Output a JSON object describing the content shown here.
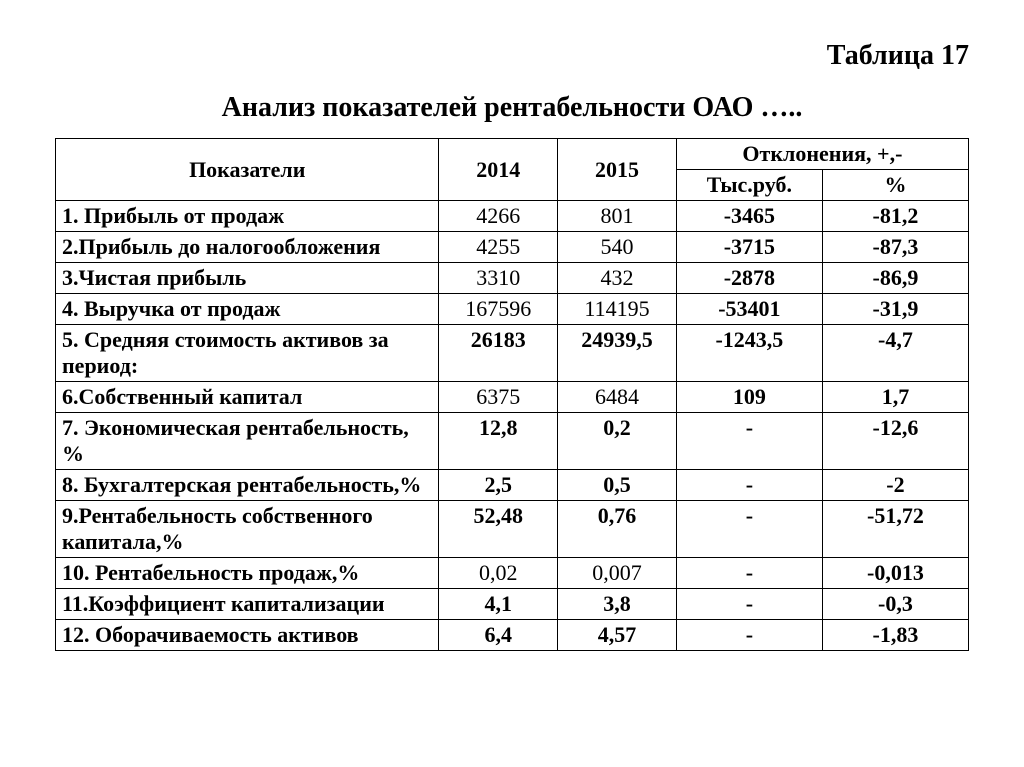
{
  "table_number": "Таблица 17",
  "caption": "Анализ показателей рентабельности ОАО …..",
  "header": {
    "indicator": "Показатели",
    "y2014": "2014",
    "y2015": "2015",
    "deviations": "Отклонения, +,-",
    "dev_abs": "Тыс.руб.",
    "dev_pct": "%"
  },
  "rows": [
    {
      "label": "1. Прибыль от продаж",
      "v2014": "4266",
      "v2015": "801",
      "abs": "-3465",
      "pct": "-81,2",
      "label_bold": true,
      "v2014_cls": "",
      "v2015_cls": "",
      "abs_cls": "bold sm",
      "pct_cls": "bold sm"
    },
    {
      "label": "2.Прибыль до налогообложения",
      "v2014": "4255",
      "v2015": "540",
      "abs": "-3715",
      "pct": "-87,3",
      "label_bold": true,
      "v2014_cls": "",
      "v2015_cls": "",
      "abs_cls": "bold",
      "pct_cls": "bold"
    },
    {
      "label": "3.Чистая прибыль",
      "v2014": "3310",
      "v2015": "432",
      "abs": "-2878",
      "pct": "-86,9",
      "label_bold": true,
      "v2014_cls": "",
      "v2015_cls": "",
      "abs_cls": "bold",
      "pct_cls": "bold"
    },
    {
      "label": "4. Выручка от продаж",
      "v2014": "167596",
      "v2015": "114195",
      "abs": "-53401",
      "pct": "-31,9",
      "label_bold": true,
      "v2014_cls": "",
      "v2015_cls": "",
      "abs_cls": "bold sm",
      "pct_cls": "bold sm"
    },
    {
      "label": "5. Средняя стоимость активов за период:",
      "v2014": "26183",
      "v2015": "24939,5",
      "abs": "-1243,5",
      "pct": "-4,7",
      "label_bold": true,
      "v2014_cls": "bold sm",
      "v2015_cls": "bold sm",
      "abs_cls": "bold sm",
      "pct_cls": "bold sm"
    },
    {
      "label": "6.Собственный капитал",
      "v2014": "6375",
      "v2015": "6484",
      "abs": "109",
      "pct": "1,7",
      "label_bold": true,
      "v2014_cls": "",
      "v2015_cls": "",
      "abs_cls": "bold",
      "pct_cls": "bold"
    },
    {
      "label": "7. Экономическая рентабельность, %",
      "v2014": "12,8",
      "v2015": "0,2",
      "abs": "-",
      "pct": "-12,6",
      "label_bold": true,
      "v2014_cls": "bold",
      "v2015_cls": "bold",
      "abs_cls": "bold",
      "pct_cls": "bold"
    },
    {
      "label": "8. Бухгалтерская рентабельность,%",
      "v2014": "2,5",
      "v2015": "0,5",
      "abs": "-",
      "pct": "-2",
      "label_bold": true,
      "v2014_cls": "bold",
      "v2015_cls": "bold",
      "abs_cls": "bold",
      "pct_cls": "bold"
    },
    {
      "label": "9.Рентабельность собственного капитала,%",
      "v2014": "52,48",
      "v2015": "0,76",
      "abs": "-",
      "pct": "-51,72",
      "label_bold": true,
      "v2014_cls": "bold",
      "v2015_cls": "bold",
      "abs_cls": "bold",
      "pct_cls": "bold"
    },
    {
      "label": "10. Рентабельность продаж,%",
      "v2014": "0,02",
      "v2015": "0,007",
      "abs": "-",
      "pct": "-0,013",
      "label_bold": true,
      "v2014_cls": "big",
      "v2015_cls": "big",
      "abs_cls": "bold",
      "pct_cls": "bold sm"
    },
    {
      "label": "11.Коэффициент капитализации",
      "v2014": "4,1",
      "v2015": "3,8",
      "abs": "-",
      "pct": "-0,3",
      "label_bold": true,
      "v2014_cls": "bold",
      "v2015_cls": "bold",
      "abs_cls": "bold",
      "pct_cls": "bold"
    },
    {
      "label": "12. Оборачиваемость активов",
      "v2014": "6,4",
      "v2015": "4,57",
      "abs": "-",
      "pct": "-1,83",
      "label_bold": true,
      "v2014_cls": "bold",
      "v2015_cls": "bold",
      "abs_cls": "bold",
      "pct_cls": "bold"
    }
  ],
  "styling": {
    "background_color": "#ffffff",
    "text_color": "#000000",
    "border_color": "#000000",
    "font_family": "Times New Roman",
    "caption_fontsize_pt": 21,
    "header_fontsize_pt": 16,
    "body_fontsize_pt": 16,
    "small_fontsize_pt": 13,
    "big_fontsize_pt": 22,
    "col_widths_pct": [
      42,
      13,
      13,
      16,
      16
    ]
  }
}
